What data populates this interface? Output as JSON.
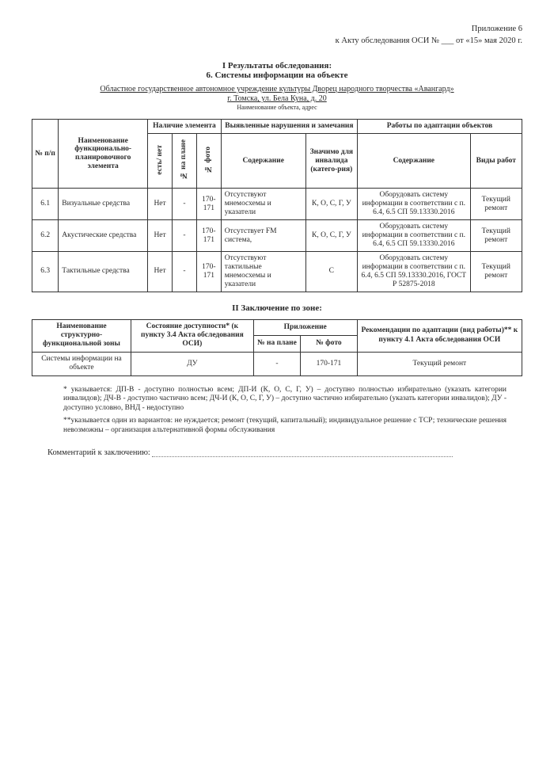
{
  "header": {
    "line1": "Приложение 6",
    "line2": "к Акту обследования ОСИ № ___ от «15» мая 2020 г."
  },
  "titles": {
    "l1": "I Результаты обследования:",
    "l2": "6. Системы информации на объекте",
    "org": "Областное государственное автономное учреждение культуры Дворец народного творчества «Авангард»",
    "addr": "г. Томска, ул. Бела Куна, д. 20",
    "caption": "Наименование объекта, адрес"
  },
  "table1": {
    "headers": {
      "num": "№ п/п",
      "name": "Наименование функционально-планировочного элемента",
      "presence": "Наличие элемента",
      "presence_sub": {
        "a": "есть/ нет",
        "b": "№ на плане",
        "c": "№ фото"
      },
      "violations": "Выявленные нарушения и замечания",
      "viol_sub": {
        "a": "Содержание",
        "b": "Значимо для инвалида (катего-рия)"
      },
      "works": "Работы по адаптации объектов",
      "works_sub": {
        "a": "Содержание",
        "b": "Виды работ"
      }
    },
    "rows": [
      {
        "n": "6.1",
        "name": "Визуальные средства",
        "has": "Нет",
        "plan": "-",
        "photo": "170-171",
        "viol": "Отсутствуют мнемосхемы и указатели",
        "cat": "К, О, С, Г, У",
        "work": "Оборудовать систему информации в соответствии с п. 6.4, 6.5 СП 59.13330.2016",
        "type": "Текущий ремонт"
      },
      {
        "n": "6.2",
        "name": "Акустические средства",
        "has": "Нет",
        "plan": "-",
        "photo": "170-171",
        "viol": "Отсутствует FM система,",
        "cat": "К, О, С, Г, У",
        "work": "Оборудовать систему информации в соответствии с п. 6.4, 6.5 СП 59.13330.2016",
        "type": "Текущий ремонт"
      },
      {
        "n": "6.3",
        "name": "Тактильные средства",
        "has": "Нет",
        "plan": "-",
        "photo": "170-171",
        "viol": "Отсутствуют тактильные мнемосхемы и указатели",
        "cat": "С",
        "work": "Оборудовать систему информации в соответствии с п. 6.4, 6.5 СП 59.13330.2016, ГОСТ Р 52875-2018",
        "type": "Текущий ремонт"
      }
    ]
  },
  "section2_title": "II Заключение по зоне:",
  "table2": {
    "headers": {
      "zone": "Наименование структурно-функциональной зоны",
      "state": "Состояние доступности* (к пункту 3.4 Акта обследования ОСИ)",
      "app": "Приложение",
      "app_sub": {
        "a": "№ на плане",
        "b": "№ фото"
      },
      "rec": "Рекомендации по адаптации (вид работы)** к пункту 4.1 Акта обследования ОСИ"
    },
    "row": {
      "zone": "Системы информации на объекте",
      "state": "ДУ",
      "plan": "-",
      "photo": "170-171",
      "rec": "Текущий ремонт"
    }
  },
  "footnotes": {
    "f1": "* указывается: ДП-В - доступно полностью всем; ДП-И (К, О, С, Г, У) – доступно полностью избирательно (указать категории инвалидов); ДЧ-В - доступно частично всем; ДЧ-И (К, О, С, Г, У) – доступно частично избирательно (указать категории инвалидов); ДУ - доступно условно, ВНД - недоступно",
    "f2": "**указывается один из вариантов: не нуждается; ремонт (текущий, капитальный); индивидуальное решение с ТСР; технические решения невозможны – организация альтернативной формы обслуживания"
  },
  "comment_label": "Комментарий к заключению:"
}
